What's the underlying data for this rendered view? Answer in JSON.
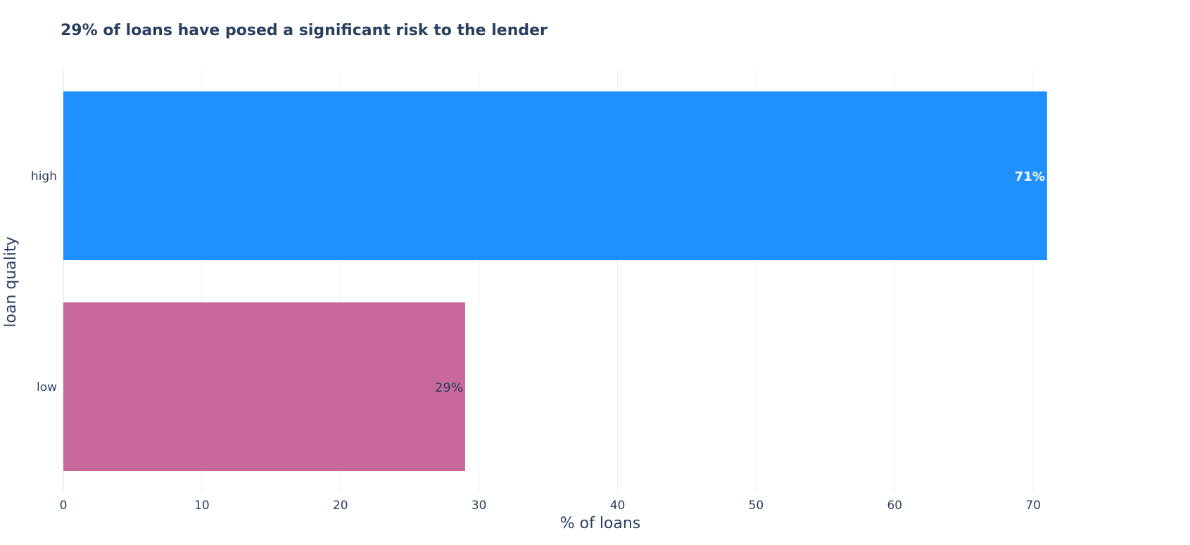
{
  "chart_data": {
    "type": "bar",
    "orientation": "horizontal",
    "title": "29% of loans have posed a significant risk to the lender",
    "xlabel": "% of loans",
    "ylabel": "loan quality",
    "categories": [
      "high",
      "low"
    ],
    "values": [
      71,
      29
    ],
    "data_labels": [
      "71%",
      "29%"
    ],
    "colors": [
      "#1e90ff",
      "#c9699b"
    ],
    "label_colors": [
      "#ffffff",
      "#2a3f5f"
    ],
    "xlim": [
      0,
      77
    ],
    "xticks": [
      0,
      10,
      20,
      30,
      40,
      50,
      60,
      70
    ],
    "grid": true,
    "legend": "none"
  }
}
